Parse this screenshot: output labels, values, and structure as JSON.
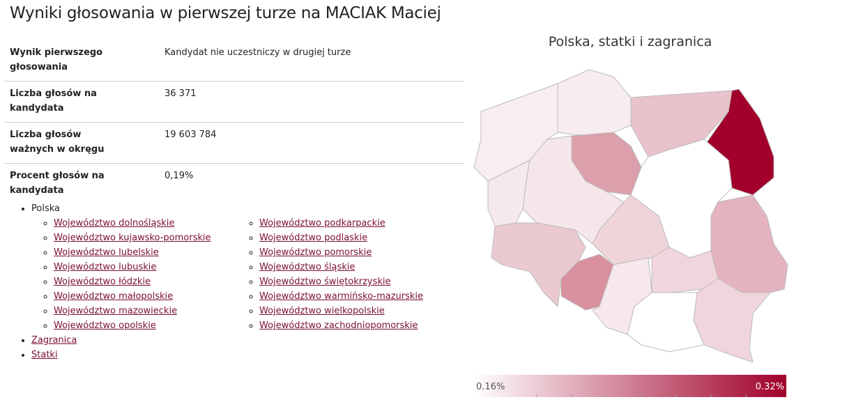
{
  "header": {
    "title": "Wyniki głosowania w pierwszej turze na MACIAK Maciej"
  },
  "table": {
    "rows": [
      [
        "Wynik pierwszego głosowania",
        "Kandydat nie uczestniczy w drugiej turze"
      ],
      [
        "Liczba głosów na kandydata",
        "36 371"
      ],
      [
        "Liczba głosów ważnych w okręgu",
        "19 603 784"
      ],
      [
        "Procent głosów na kandydata",
        "0,19%"
      ]
    ]
  },
  "regions": {
    "root": "Polska",
    "voivodeships": [
      "Województwo dolnośląskie",
      "Województwo kujawsko-pomorskie",
      "Województwo lubelskie",
      "Województwo lubuskie",
      "Województwo łódzkie",
      "Województwo małopolskie",
      "Województwo mazowieckie",
      "Województwo opolskie",
      "Województwo podkarpackie",
      "Województwo podlaskie",
      "Województwo pomorskie",
      "Województwo śląskie",
      "Województwo świętokrzyskie",
      "Województwo warmińsko-mazurskie",
      "Województwo wielkopolskie",
      "Województwo zachodniopomorskie"
    ],
    "other": [
      "Zagranica",
      "Statki"
    ]
  },
  "map": {
    "title": "Polska, statki i zagranica",
    "legend": {
      "min": "0.16%",
      "max": "0.32%"
    }
  }
}
